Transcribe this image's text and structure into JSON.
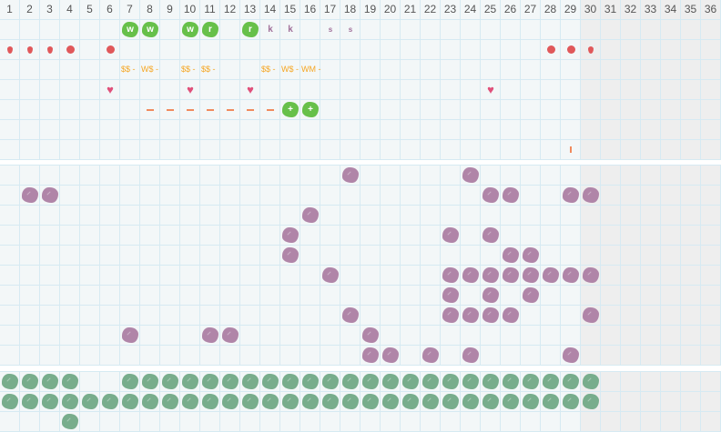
{
  "header": {
    "days": [
      "1",
      "2",
      "3",
      "4",
      "5",
      "6",
      "7",
      "8",
      "9",
      "10",
      "11",
      "12",
      "13",
      "14",
      "15",
      "16",
      "17",
      "18",
      "19",
      "20",
      "21",
      "22",
      "23",
      "24",
      "25",
      "26",
      "27",
      "28",
      "29",
      "30",
      "31",
      "32",
      "33",
      "34",
      "35",
      "36"
    ],
    "inactive_from_day": 30
  },
  "colors": {
    "grid": "#d6eaf2",
    "cell": "#f3f7f8",
    "inactive": "#eeeeee",
    "green_blob": "#67c04a",
    "purple_blob": "#b085a8",
    "sage_blob": "#78ad8c",
    "red": "#e0585a",
    "orange": "#f5a623",
    "salmon": "#f08a5d",
    "pink": "#e0507a",
    "purple_text": "#a0709a"
  },
  "sections": [
    {
      "name": "tracker-top",
      "rows": [
        {
          "marks": [
            {
              "day": 7,
              "type": "green-blob",
              "label": "w"
            },
            {
              "day": 8,
              "type": "green-blob",
              "label": "w"
            },
            {
              "day": 10,
              "type": "green-blob",
              "label": "w"
            },
            {
              "day": 11,
              "type": "green-blob",
              "label": "r"
            },
            {
              "day": 13,
              "type": "green-blob",
              "label": "r"
            },
            {
              "day": 14,
              "type": "purple-text",
              "label": "k"
            },
            {
              "day": 15,
              "type": "purple-text",
              "label": "k"
            },
            {
              "day": 17,
              "type": "purple-text-small",
              "label": "s"
            },
            {
              "day": 18,
              "type": "purple-text-small",
              "label": "s"
            }
          ]
        },
        {
          "marks": [
            {
              "day": 1,
              "type": "drop"
            },
            {
              "day": 2,
              "type": "drop"
            },
            {
              "day": 3,
              "type": "drop"
            },
            {
              "day": 4,
              "type": "dot"
            },
            {
              "day": 6,
              "type": "dot"
            },
            {
              "day": 28,
              "type": "dot"
            },
            {
              "day": 29,
              "type": "dot"
            },
            {
              "day": 30,
              "type": "drop"
            }
          ]
        },
        {
          "marks": [
            {
              "day": 7,
              "type": "orange-text",
              "label": "$$ -"
            },
            {
              "day": 8,
              "type": "orange-text",
              "label": "W$ -"
            },
            {
              "day": 10,
              "type": "orange-text",
              "label": "$$ -"
            },
            {
              "day": 11,
              "type": "orange-text",
              "label": "$$ -"
            },
            {
              "day": 14,
              "type": "orange-text",
              "label": "$$ -"
            },
            {
              "day": 15,
              "type": "orange-text",
              "label": "W$ -"
            },
            {
              "day": 16,
              "type": "orange-text",
              "label": "WM -"
            }
          ]
        },
        {
          "marks": [
            {
              "day": 6,
              "type": "heart"
            },
            {
              "day": 10,
              "type": "heart"
            },
            {
              "day": 13,
              "type": "heart"
            },
            {
              "day": 25,
              "type": "heart"
            }
          ]
        },
        {
          "marks": [
            {
              "day": 8,
              "type": "dash"
            },
            {
              "day": 9,
              "type": "dash"
            },
            {
              "day": 10,
              "type": "dash"
            },
            {
              "day": 11,
              "type": "dash"
            },
            {
              "day": 12,
              "type": "dash"
            },
            {
              "day": 13,
              "type": "dash"
            },
            {
              "day": 14,
              "type": "dash"
            },
            {
              "day": 15,
              "type": "green-blob",
              "label": "+"
            },
            {
              "day": 16,
              "type": "green-blob",
              "label": "+"
            }
          ]
        },
        {
          "marks": []
        },
        {
          "marks": [
            {
              "day": 29,
              "type": "bar"
            }
          ]
        }
      ]
    },
    {
      "name": "tracker-purple",
      "rows": [
        {
          "days": [
            18,
            24
          ]
        },
        {
          "days": [
            2,
            3,
            25,
            26,
            29,
            30
          ]
        },
        {
          "days": [
            16
          ]
        },
        {
          "days": [
            15,
            23,
            25
          ]
        },
        {
          "days": [
            15,
            26,
            27
          ]
        },
        {
          "days": [
            17,
            23,
            24,
            25,
            26,
            27,
            28,
            29,
            30
          ]
        },
        {
          "days": [
            23,
            25,
            27
          ]
        },
        {
          "days": [
            18,
            23,
            24,
            25,
            26,
            30
          ]
        },
        {
          "days": [
            7,
            11,
            12,
            19
          ]
        },
        {
          "days": [
            19,
            20,
            22,
            24,
            29
          ]
        }
      ]
    },
    {
      "name": "tracker-green",
      "rows": [
        {
          "days": [
            1,
            2,
            3,
            4,
            7,
            8,
            9,
            10,
            11,
            12,
            13,
            14,
            15,
            16,
            17,
            18,
            19,
            20,
            21,
            22,
            23,
            24,
            25,
            26,
            27,
            28,
            29,
            30
          ]
        },
        {
          "days": [
            1,
            2,
            3,
            4,
            5,
            6,
            7,
            8,
            9,
            10,
            11,
            12,
            13,
            14,
            15,
            16,
            17,
            18,
            19,
            20,
            21,
            22,
            23,
            24,
            25,
            26,
            27,
            28,
            29,
            30
          ]
        },
        {
          "days": [
            4
          ]
        }
      ]
    }
  ]
}
